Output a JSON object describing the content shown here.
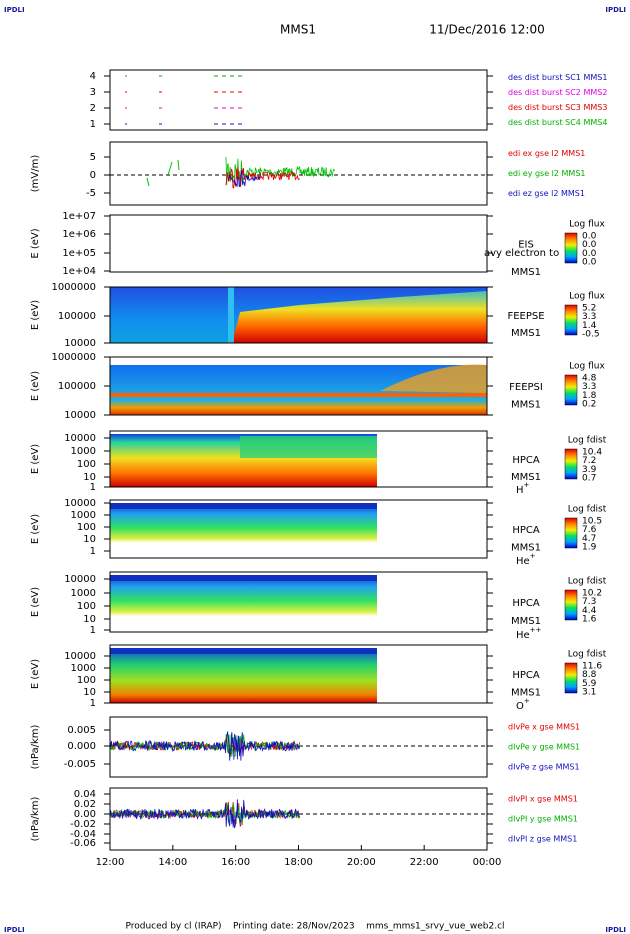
{
  "header": {
    "logo_left": "IPDLI",
    "logo_right": "IPDLI",
    "title": "MMS1",
    "date": "11/Dec/2016 12:00"
  },
  "panels": [
    {
      "yticks": [
        "4",
        "3",
        "2",
        "1"
      ],
      "legend": [
        "des dist burst SC1 MMS1",
        "des dist burst SC2 MMS2",
        "des dist burst SC3 MMS3",
        "des dist burst SC4 MMS4"
      ]
    },
    {
      "ylabel": "(mV/m)",
      "yticks": [
        "5",
        "0",
        "-5"
      ],
      "legend": [
        "edi ex gse l2 MMS1",
        "edi ey gse l2 MMS1",
        "edi ez gse l2 MMS1"
      ]
    },
    {
      "ylabel": "E (eV)",
      "yticks": [
        "1e+07",
        "1e+06",
        "1e+05",
        "1e+04"
      ],
      "instrument": "EIS",
      "spacecraft": "MMS1",
      "overlay": "avy electron to",
      "colorbar": {
        "title": "Log flux",
        "labels": [
          "0.0",
          "0.0",
          "0.0",
          "0.0"
        ]
      }
    },
    {
      "ylabel": "E (eV)",
      "yticks": [
        "1000000",
        "100000",
        "10000"
      ],
      "instrument": "FEEPSE",
      "spacecraft": "MMS1",
      "colorbar": {
        "title": "Log flux",
        "labels": [
          "5.2",
          "3.3",
          "1.4",
          "-0.5"
        ]
      }
    },
    {
      "ylabel": "E (eV)",
      "yticks": [
        "1000000",
        "100000",
        "10000"
      ],
      "instrument": "FEEPSI",
      "spacecraft": "MMS1",
      "colorbar": {
        "title": "Log flux",
        "labels": [
          "4.8",
          "3.3",
          "1.8",
          "0.2"
        ]
      }
    },
    {
      "ylabel": "E (eV)",
      "yticks": [
        "10000",
        "1000",
        "100",
        "10",
        "1"
      ],
      "instrument": "HPCA",
      "spacecraft": "MMS1",
      "ion": {
        "base": "H",
        "charge": "+"
      },
      "colorbar": {
        "title": "Log fdist",
        "labels": [
          "10.4",
          "7.2",
          "3.9",
          "0.7"
        ]
      }
    },
    {
      "ylabel": "E (eV)",
      "yticks": [
        "10000",
        "1000",
        "100",
        "10",
        "1"
      ],
      "instrument": "HPCA",
      "spacecraft": "MMS1",
      "ion": {
        "base": "He",
        "charge": "+"
      },
      "colorbar": {
        "title": "Log fdist",
        "labels": [
          "10.5",
          "7.6",
          "4.7",
          "1.9"
        ]
      }
    },
    {
      "ylabel": "E (eV)",
      "yticks": [
        "10000",
        "1000",
        "100",
        "10",
        "1"
      ],
      "instrument": "HPCA",
      "spacecraft": "MMS1",
      "ion": {
        "base": "He",
        "charge": "++"
      },
      "colorbar": {
        "title": "Log fdist",
        "labels": [
          "10.2",
          "7.3",
          "4.4",
          "1.6"
        ]
      }
    },
    {
      "ylabel": "E (eV)",
      "yticks": [
        "10000",
        "1000",
        "100",
        "10",
        "1"
      ],
      "instrument": "HPCA",
      "spacecraft": "MMS1",
      "ion": {
        "base": "O",
        "charge": "+"
      },
      "colorbar": {
        "title": "Log fdist",
        "labels": [
          "11.6",
          "8.8",
          "5.9",
          "3.1"
        ]
      }
    },
    {
      "ylabel": "(nPa/km)",
      "yticks": [
        "0.005",
        "0.000",
        "-0.005"
      ],
      "legend": [
        "dIvPe x gse MMS1",
        "dIvPe y gse MMS1",
        "dIvPe z gse MMS1"
      ]
    },
    {
      "ylabel": "(nPa/km)",
      "yticks": [
        "0.04",
        "0.02",
        "0.00",
        "-0.02",
        "-0.04",
        "-0.06"
      ],
      "legend": [
        "dIvPI x gse MMS1",
        "dIvPI y gse MMS1",
        "dIvPI z gse MMS1"
      ]
    }
  ],
  "xticks": [
    "12:00",
    "14:00",
    "16:00",
    "18:00",
    "20:00",
    "22:00",
    "00:00"
  ],
  "footer": "Produced by cl (IRAP)    Printing date: 28/Nov/2023    mms_mms1_srvy_vue_web2.cl",
  "bottom_logos": {
    "left": "IPDLI",
    "right": "IPDLI"
  }
}
